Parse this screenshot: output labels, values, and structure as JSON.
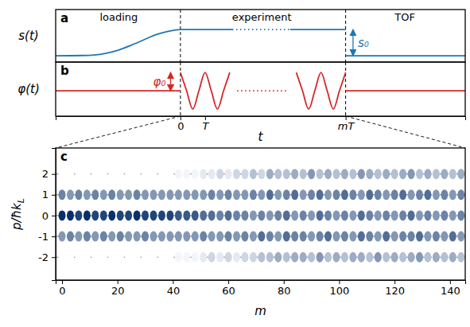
{
  "chart_data": [
    {
      "panel": "a",
      "type": "line",
      "ylabel": "s(t)",
      "xlim": [
        -5.06,
        11.55
      ],
      "ylim": [
        -0.24,
        1.76
      ],
      "tick_labels": false,
      "vlines": [
        0,
        6.7
      ],
      "series": [
        {
          "color": "#1f77b4",
          "line_style": "solid",
          "x": [
            -5.06,
            -4,
            -3.5,
            -3,
            -2.5,
            -2,
            -1.5,
            -1,
            -0.5,
            0,
            2.1,
            3,
            4.45,
            6.7,
            6.7,
            6.7,
            11.55
          ],
          "values": [
            0,
            0.01,
            0.03,
            0.1,
            0.22,
            0.4,
            0.6,
            0.8,
            0.93,
            1,
            1,
            null,
            1,
            1,
            null,
            0,
            0
          ]
        },
        {
          "color": "#1f77b4",
          "line_style": "dotted",
          "x": [
            2.1,
            4.45
          ],
          "values": [
            1,
            1
          ]
        }
      ],
      "annotations": [
        {
          "text": "loading",
          "x": -2.5,
          "y": 1.45
        },
        {
          "text": "experiment",
          "x": 3.3,
          "y": 1.45
        },
        {
          "text": "TOF",
          "x": 9.1,
          "y": 1.45
        },
        {
          "text": "s₀",
          "x": 7.0,
          "y0": 0,
          "y1": 1
        }
      ]
    },
    {
      "panel": "b",
      "type": "line",
      "ylabel": "φ(t)",
      "xlabel": "t",
      "xlim": [
        -5.06,
        11.55
      ],
      "ylim": [
        -1.39,
        1.57
      ],
      "tick_labels": "x",
      "xticks": [
        0,
        {
          "value": 1,
          "label": "T"
        },
        {
          "value": 6.7,
          "label": "mT"
        }
      ],
      "vlines": [
        0,
        6.7
      ],
      "series": [
        {
          "color": "#d62728",
          "line_style": "solid",
          "x": [
            -5.06,
            0,
            0,
            0,
            0.25,
            0.5,
            0.75,
            1,
            1.25,
            1.5,
            1.75,
            2,
            2,
            4.7,
            4.95,
            5.2,
            5.45,
            5.7,
            5.95,
            6.2,
            6.45,
            6.7,
            6.7,
            6.7,
            11.55
          ],
          "values": [
            0,
            0,
            null,
            1,
            0,
            -1,
            0,
            1,
            0,
            -1,
            0,
            1,
            null,
            1,
            0,
            -1,
            0,
            1,
            0,
            -1,
            0,
            1,
            null,
            0,
            0
          ]
        },
        {
          "color": "#d62728",
          "line_style": "dotted",
          "x": [
            2.3,
            4.4
          ],
          "values": [
            0,
            0
          ]
        }
      ],
      "annotations": [
        {
          "text": "φ₀",
          "x": -0.4,
          "y0": 0,
          "y1": 1
        }
      ]
    },
    {
      "panel": "c",
      "type": "heatmap",
      "xlabel": "m",
      "ylabel": "p/ħkL",
      "xlim": [
        -2.3,
        145.5
      ],
      "ylim": [
        -3.1,
        3.25
      ],
      "xticks": [
        0,
        20,
        40,
        60,
        80,
        100,
        120,
        140
      ],
      "yticks": [
        2,
        1,
        0,
        -1,
        -2
      ],
      "grid": true,
      "color": "#08306b",
      "x": [
        0,
        3,
        6,
        9,
        12,
        15,
        18,
        21,
        24,
        27,
        30,
        33,
        36,
        39,
        42,
        45,
        48,
        51,
        54,
        57,
        60,
        63,
        66,
        69,
        72,
        75,
        78,
        81,
        84,
        87,
        90,
        93,
        96,
        99,
        102,
        105,
        108,
        111,
        114,
        117,
        120,
        123,
        126,
        129,
        132,
        135,
        138,
        141,
        144
      ],
      "y": [
        2,
        1,
        0,
        -1,
        -2
      ],
      "cells": [
        [
          0,
          0,
          0,
          0,
          0,
          0,
          0,
          0,
          0,
          0,
          0,
          0,
          0,
          0,
          0.05,
          0.05,
          0.05,
          0.1,
          0.1,
          0.2,
          0.1,
          0.2,
          0.2,
          0.3,
          0.2,
          0.4,
          0.3,
          0.3,
          0.4,
          0.3,
          0.5,
          0.3,
          0.4,
          0.3,
          0.4,
          0.3,
          0.5,
          0.4,
          0.3,
          0.4,
          0.3,
          0.4,
          0.5,
          0.3,
          0.4,
          0.3,
          0.4,
          0.3,
          0.4
        ],
        [
          0.6,
          0.5,
          0.6,
          0.5,
          0.6,
          0.5,
          0.6,
          0.5,
          0.5,
          0.6,
          0.5,
          0.5,
          0.5,
          0.5,
          0.5,
          0.5,
          0.5,
          0.5,
          0.6,
          0.5,
          0.6,
          0.5,
          0.5,
          0.6,
          0.5,
          0.7,
          0.5,
          0.6,
          0.7,
          0.5,
          0.6,
          0.7,
          0.5,
          0.6,
          0.7,
          0.6,
          0.5,
          0.7,
          0.6,
          0.5,
          0.6,
          0.7,
          0.5,
          0.6,
          0.7,
          0.5,
          0.6,
          0.5,
          0.6
        ],
        [
          1,
          1,
          0.9,
          1,
          0.9,
          0.9,
          1,
          0.9,
          0.9,
          1,
          0.9,
          0.9,
          0.9,
          0.9,
          0.8,
          0.8,
          0.8,
          0.7,
          0.7,
          0.6,
          0.7,
          0.6,
          0.6,
          0.5,
          0.6,
          0.5,
          0.6,
          0.7,
          0.5,
          0.6,
          0.5,
          0.7,
          0.6,
          0.5,
          0.6,
          0.5,
          0.7,
          0.6,
          0.5,
          0.6,
          0.5,
          0.6,
          0.7,
          0.5,
          0.6,
          0.5,
          0.6,
          0.5,
          0.6
        ],
        [
          0.5,
          0.6,
          0.5,
          0.6,
          0.5,
          0.6,
          0.5,
          0.6,
          0.5,
          0.5,
          0.6,
          0.5,
          0.5,
          0.5,
          0.5,
          0.5,
          0.5,
          0.6,
          0.5,
          0.5,
          0.6,
          0.5,
          0.6,
          0.5,
          0.7,
          0.6,
          0.5,
          0.7,
          0.6,
          0.6,
          0.5,
          0.6,
          0.7,
          0.5,
          0.6,
          0.5,
          0.7,
          0.6,
          0.5,
          0.7,
          0.5,
          0.6,
          0.6,
          0.7,
          0.5,
          0.6,
          0.5,
          0.7,
          0.5
        ],
        [
          0,
          0,
          0,
          0,
          0,
          0,
          0,
          0,
          0,
          0,
          0,
          0,
          0,
          0,
          0.05,
          0.05,
          0.05,
          0.1,
          0.2,
          0.1,
          0.2,
          0.1,
          0.2,
          0.2,
          0.3,
          0.3,
          0.4,
          0.3,
          0.4,
          0.4,
          0.3,
          0.5,
          0.3,
          0.4,
          0.3,
          0.4,
          0.4,
          0.3,
          0.5,
          0.3,
          0.4,
          0.3,
          0.4,
          0.5,
          0.3,
          0.4,
          0.3,
          0.4,
          0.3
        ]
      ]
    }
  ]
}
